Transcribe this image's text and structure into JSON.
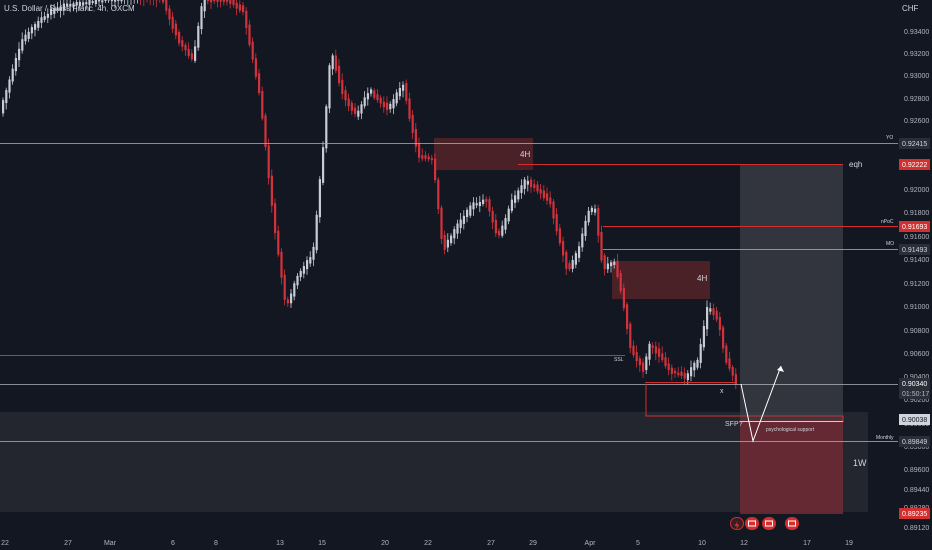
{
  "header": {
    "symbol": "U.S. Dollar / Swiss Franc",
    "interval": "4h",
    "exchange": "OXCM"
  },
  "price_axis": {
    "currency": "CHF",
    "ticks": [
      "0.93400",
      "0.93200",
      "0.93000",
      "0.92800",
      "0.92600",
      "0.92400",
      "0.92200",
      "0.92000",
      "0.91800",
      "0.91600",
      "0.91400",
      "0.91200",
      "0.91000",
      "0.90800",
      "0.90600",
      "0.90400",
      "0.90200",
      "0.90000",
      "0.89800",
      "0.89600",
      "0.89440",
      "0.89280",
      "0.89120"
    ],
    "labels": {
      "yo": "0.92415",
      "eqh": "0.92222",
      "npoc": "0.91693",
      "mo": "0.91493",
      "current": "0.90340",
      "countdown": "01:50:17",
      "level_low": "0.90038",
      "monthly": "0.89849",
      "bottom": "0.89235"
    }
  },
  "time_axis": {
    "ticks": [
      "22",
      "27",
      "Mar",
      "6",
      "8",
      "13",
      "15",
      "20",
      "22",
      "27",
      "29",
      "Apr",
      "5",
      "10",
      "12",
      "17",
      "19"
    ]
  },
  "annotations": {
    "yo": "YO",
    "eqh": "eqh",
    "npoc": "nPoC",
    "mo": "MO",
    "monthly": "Monthly",
    "zone_4h_a": "4H",
    "zone_4h_b": "4H",
    "ssl": "SSL",
    "x_mark": "x",
    "sfp": "SFP?",
    "psych": "psychological support",
    "tf_1w": "1W"
  },
  "colors": {
    "background": "#131722",
    "bull_candle": "#c8ccd5",
    "bear_candle": "#d2323c",
    "red_line": "#d32f2f",
    "neutral_line": "#b2b5be",
    "zone_red": "#4a2127",
    "zone_grey": "#23262f",
    "target_box": "#3e4048",
    "stop_box": "#6b2a33",
    "current_label": "#2a2e39",
    "red_label": "#d32f2f"
  },
  "chart_data": {
    "type": "candlestick",
    "symbol": "USDCHF",
    "interval": "4h",
    "ylim": [
      0.8912,
      0.9355
    ],
    "levels": [
      {
        "name": "YO",
        "value": 0.92415
      },
      {
        "name": "eqh",
        "value": 0.92222
      },
      {
        "name": "nPoC",
        "value": 0.91693
      },
      {
        "name": "MO",
        "value": 0.91493
      },
      {
        "name": "SSL",
        "value": 0.9059
      },
      {
        "name": "current",
        "value": 0.9034
      },
      {
        "name": "psychological support",
        "value": 0.90038
      },
      {
        "name": "Monthly",
        "value": 0.89849
      },
      {
        "name": "bottom",
        "value": 0.89235
      }
    ],
    "zones": [
      {
        "label": "4H",
        "from": "Mar 22",
        "to": "Mar 29",
        "high": 0.9245,
        "low": 0.9218
      },
      {
        "label": "4H",
        "from": "Apr 4",
        "to": "Apr 10",
        "high": 0.914,
        "low": 0.9105
      },
      {
        "label": "1W",
        "high": 0.9008,
        "low": 0.8925
      }
    ],
    "trade": {
      "target": 0.92222,
      "stop": 0.89235,
      "entry": 0.90038
    }
  }
}
